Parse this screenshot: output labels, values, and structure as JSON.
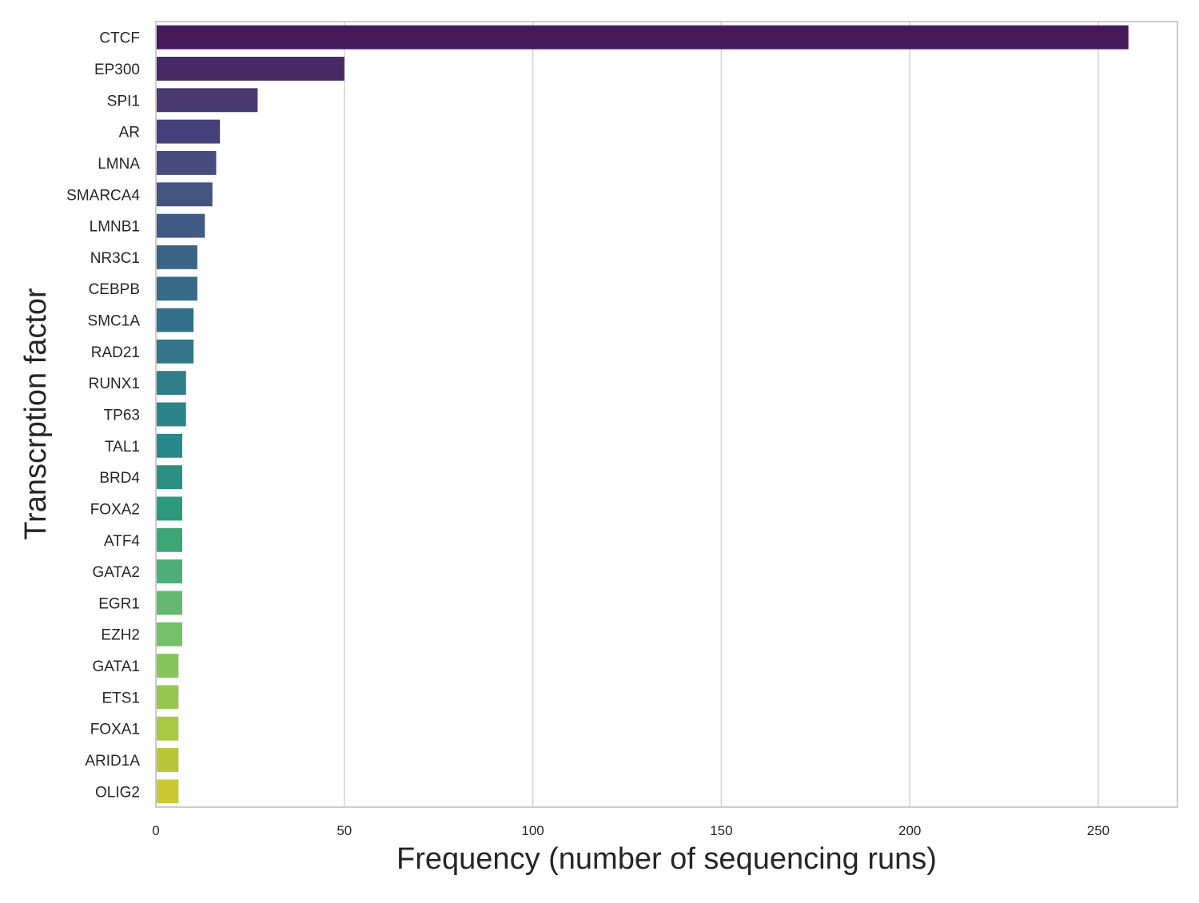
{
  "chart_data": {
    "type": "bar",
    "orientation": "horizontal",
    "xlabel": "Frequency (number of sequencing runs)",
    "ylabel": "Transcrption factor",
    "xlim": [
      0,
      271
    ],
    "x_ticks": [
      0,
      50,
      100,
      150,
      200,
      250
    ],
    "grid": "vertical",
    "colormap": "viridis",
    "categories": [
      "CTCF",
      "EP300",
      "SPI1",
      "AR",
      "LMNA",
      "SMARCA4",
      "LMNB1",
      "NR3C1",
      "CEBPB",
      "SMC1A",
      "RAD21",
      "RUNX1",
      "TP63",
      "TAL1",
      "BRD4",
      "FOXA2",
      "ATF4",
      "GATA2",
      "EGR1",
      "EZH2",
      "GATA1",
      "ETS1",
      "FOXA1",
      "ARID1A",
      "OLIG2"
    ],
    "values": [
      258,
      50,
      27,
      17,
      16,
      15,
      13,
      11,
      11,
      10,
      10,
      8,
      8,
      7,
      7,
      7,
      7,
      7,
      7,
      7,
      6,
      6,
      6,
      6,
      6
    ],
    "colors": [
      "#45185a",
      "#472a65",
      "#483a6e",
      "#463f78",
      "#464c7c",
      "#445480",
      "#405a83",
      "#3c6285",
      "#376a86",
      "#34708a",
      "#337588",
      "#2e7d88",
      "#2b848a",
      "#29898a",
      "#2b9080",
      "#2c9a7c",
      "#3da676",
      "#4eae77",
      "#62b86f",
      "#76bf6a",
      "#87c45c",
      "#98c653",
      "#a9c944",
      "#b9c537",
      "#cac932"
    ]
  }
}
